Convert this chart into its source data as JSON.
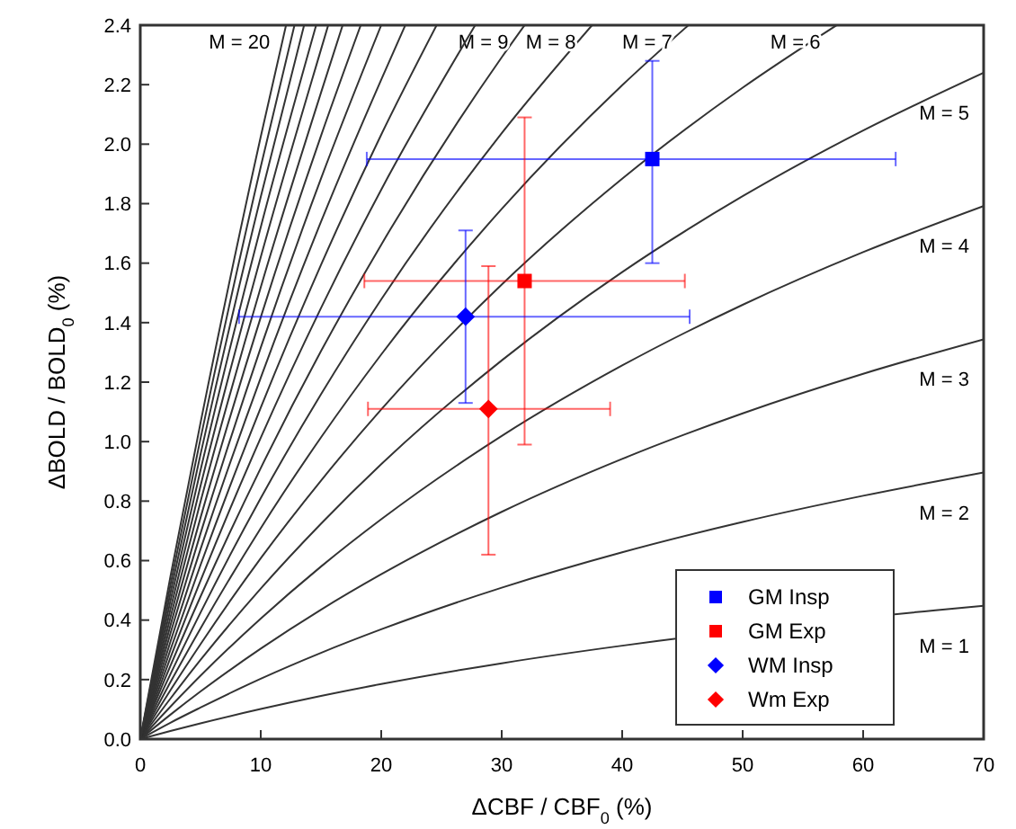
{
  "chart_data": {
    "type": "line",
    "xlabel": "ΔCBF / CBF$_{0}$ (%)",
    "ylabel": "ΔBOLD / BOLD$_{0}$ (%)",
    "xlim": [
      0,
      70
    ],
    "xticks": [
      0,
      10,
      20,
      30,
      40,
      50,
      60,
      70
    ],
    "ylim": [
      0,
      2.4
    ],
    "yticks": [
      {
        "value": 0,
        "label": "0.0"
      },
      0.2,
      0.4,
      0.6,
      0.8,
      {
        "value": 1,
        "label": "1.0"
      },
      1.2,
      1.4,
      1.6,
      1.8,
      {
        "value": 2,
        "label": "2.0"
      },
      2.2,
      2.4
    ],
    "grid": false,
    "legend": "bottom right",
    "series": [
      {
        "type": "line",
        "name": "M = 1",
        "color": "#333333",
        "marker": "none",
        "line_style": "solid",
        "x": [
          0,
          2.5,
          5,
          10,
          15,
          20,
          30,
          40,
          43,
          66,
          70
        ],
        "values": [
          0,
          0.027,
          0.053,
          0.101,
          0.145,
          0.185,
          0.255,
          0.314,
          0.33,
          0.433,
          0.448
        ]
      },
      {
        "type": "line",
        "name": "M = 2",
        "color": "#333333",
        "marker": "none",
        "line_style": "solid",
        "x": [
          0,
          2.5,
          5,
          10,
          15,
          20,
          30,
          40,
          50,
          60,
          70
        ],
        "values": [
          0,
          0.055,
          0.106,
          0.203,
          0.29,
          0.369,
          0.509,
          0.628,
          0.73,
          0.818,
          0.896
        ]
      },
      {
        "type": "line",
        "name": "M = 3",
        "color": "#333333",
        "marker": "none",
        "line_style": "solid",
        "x": [
          0,
          2.5,
          5,
          10,
          15,
          20,
          30,
          40,
          50,
          60,
          70
        ],
        "values": [
          0,
          0.082,
          0.16,
          0.304,
          0.435,
          0.554,
          0.764,
          0.942,
          1.095,
          1.228,
          1.344
        ]
      },
      {
        "type": "line",
        "name": "M = 4",
        "color": "#333333",
        "marker": "none",
        "line_style": "solid",
        "x": [
          0,
          2.5,
          5,
          10,
          15,
          20,
          30,
          40,
          50,
          60,
          70
        ],
        "values": [
          0,
          0.109,
          0.213,
          0.405,
          0.58,
          0.739,
          1.019,
          1.256,
          1.46,
          1.637,
          1.792
        ]
      },
      {
        "type": "line",
        "name": "M = 5",
        "color": "#333333",
        "marker": "none",
        "line_style": "solid",
        "x": [
          0,
          2.5,
          5,
          10,
          15,
          20,
          30,
          40,
          50,
          60,
          70
        ],
        "values": [
          0,
          0.136,
          0.266,
          0.506,
          0.724,
          0.924,
          1.273,
          1.57,
          1.825,
          2.046,
          2.24
        ]
      },
      {
        "type": "line",
        "name": "M = 6",
        "color": "#333333",
        "marker": "none",
        "line_style": "solid",
        "x": [
          0,
          2.5,
          5,
          10,
          15,
          20,
          30,
          40,
          50,
          57.8
        ],
        "values": [
          0,
          0.164,
          0.319,
          0.608,
          0.869,
          1.108,
          1.528,
          1.884,
          2.19,
          2.4
        ]
      },
      {
        "type": "line",
        "name": "M = 7",
        "color": "#333333",
        "marker": "none",
        "line_style": "solid",
        "x": [
          0,
          2.5,
          5,
          10,
          15,
          20,
          30,
          40,
          45.5
        ],
        "values": [
          0,
          0.191,
          0.372,
          0.709,
          1.014,
          1.293,
          1.782,
          2.198,
          2.4
        ]
      },
      {
        "type": "line",
        "name": "M = 8",
        "color": "#333333",
        "marker": "none",
        "line_style": "solid",
        "x": [
          0,
          2.5,
          5,
          10,
          15,
          20,
          30,
          37.5
        ],
        "values": [
          0,
          0.218,
          0.425,
          0.81,
          1.159,
          1.478,
          2.037,
          2.4
        ]
      },
      {
        "type": "line",
        "name": "M = 9",
        "color": "#333333",
        "marker": "none",
        "line_style": "solid",
        "x": [
          0,
          2.5,
          5,
          10,
          15,
          20,
          30,
          31.9
        ],
        "values": [
          0,
          0.246,
          0.479,
          0.911,
          1.304,
          1.662,
          2.292,
          2.4
        ]
      },
      {
        "type": "line",
        "color": "#333333",
        "marker": "none",
        "line_style": "solid",
        "x": [
          0,
          2.5,
          5,
          10,
          15,
          20,
          27.8
        ],
        "values": [
          0,
          0.273,
          0.532,
          1.013,
          1.449,
          1.847,
          2.4
        ]
      },
      {
        "type": "line",
        "color": "#333333",
        "marker": "none",
        "line_style": "solid",
        "x": [
          0,
          2.5,
          5,
          10,
          15,
          20,
          24.6
        ],
        "values": [
          0,
          0.3,
          0.585,
          1.114,
          1.594,
          2.032,
          2.4
        ]
      },
      {
        "type": "line",
        "color": "#333333",
        "marker": "none",
        "line_style": "solid",
        "x": [
          0,
          2.5,
          5,
          10,
          15,
          20,
          22
        ],
        "values": [
          0,
          0.327,
          0.638,
          1.215,
          1.739,
          2.217,
          2.4
        ]
      },
      {
        "type": "line",
        "color": "#333333",
        "marker": "none",
        "line_style": "solid",
        "x": [
          0,
          2.5,
          5,
          10,
          15,
          20
        ],
        "values": [
          0,
          0.355,
          0.691,
          1.316,
          1.884,
          2.4
        ]
      },
      {
        "type": "line",
        "color": "#333333",
        "marker": "none",
        "line_style": "solid",
        "x": [
          0,
          2.5,
          5,
          10,
          15,
          18.3
        ],
        "values": [
          0,
          0.382,
          0.744,
          1.418,
          2.028,
          2.4
        ]
      },
      {
        "type": "line",
        "color": "#333333",
        "marker": "none",
        "line_style": "solid",
        "x": [
          0,
          2.5,
          5,
          10,
          15,
          16.8
        ],
        "values": [
          0,
          0.409,
          0.798,
          1.519,
          2.173,
          2.4
        ]
      },
      {
        "type": "line",
        "color": "#333333",
        "marker": "none",
        "line_style": "solid",
        "x": [
          0,
          2.5,
          5,
          10,
          15,
          15.6
        ],
        "values": [
          0,
          0.436,
          0.851,
          1.62,
          2.318,
          2.4
        ]
      },
      {
        "type": "line",
        "color": "#333333",
        "marker": "none",
        "line_style": "solid",
        "x": [
          0,
          2.5,
          5,
          10,
          14.6
        ],
        "values": [
          0,
          0.464,
          0.904,
          1.721,
          2.4
        ]
      },
      {
        "type": "line",
        "color": "#333333",
        "marker": "none",
        "line_style": "solid",
        "x": [
          0,
          2.5,
          5,
          10,
          13.6
        ],
        "values": [
          0,
          0.491,
          0.957,
          1.823,
          2.4
        ]
      },
      {
        "type": "line",
        "color": "#333333",
        "marker": "none",
        "line_style": "solid",
        "x": [
          0,
          2.5,
          5,
          10,
          12.8
        ],
        "values": [
          0,
          0.518,
          1.01,
          1.924,
          2.4
        ]
      },
      {
        "type": "line",
        "name": "M = 20",
        "color": "#333333",
        "marker": "none",
        "line_style": "solid",
        "x": [
          0,
          2.5,
          5,
          10,
          12.1
        ],
        "values": [
          0,
          0.546,
          1.063,
          2.025,
          2.4
        ]
      },
      {
        "type": "scatter",
        "name": "GM Insp",
        "color": "#0000ff",
        "marker": "square",
        "x": [
          42.5
        ],
        "values": [
          1.95
        ],
        "errors": [
          [
            1.6,
            2.28
          ]
        ],
        "xerrors": [
          [
            18.8,
            62.7
          ]
        ]
      },
      {
        "type": "scatter",
        "name": "GM Exp",
        "color": "#ff0000",
        "marker": "square",
        "x": [
          31.9
        ],
        "values": [
          1.54
        ],
        "errors": [
          [
            0.99,
            2.09
          ]
        ],
        "xerrors": [
          [
            18.6,
            45.2
          ]
        ]
      },
      {
        "type": "scatter",
        "name": "WM Insp",
        "color": "#0000ff",
        "marker": "diamond",
        "x": [
          27
        ],
        "values": [
          1.42
        ],
        "errors": [
          [
            1.13,
            1.71
          ]
        ],
        "xerrors": [
          [
            8.2,
            45.6
          ]
        ]
      },
      {
        "type": "scatter",
        "name": "Wm Exp",
        "color": "#ff0000",
        "marker": "diamond",
        "x": [
          28.9
        ],
        "values": [
          1.11
        ],
        "errors": [
          [
            0.62,
            1.59
          ]
        ],
        "xerrors": [
          [
            18.9,
            39
          ]
        ]
      }
    ]
  }
}
